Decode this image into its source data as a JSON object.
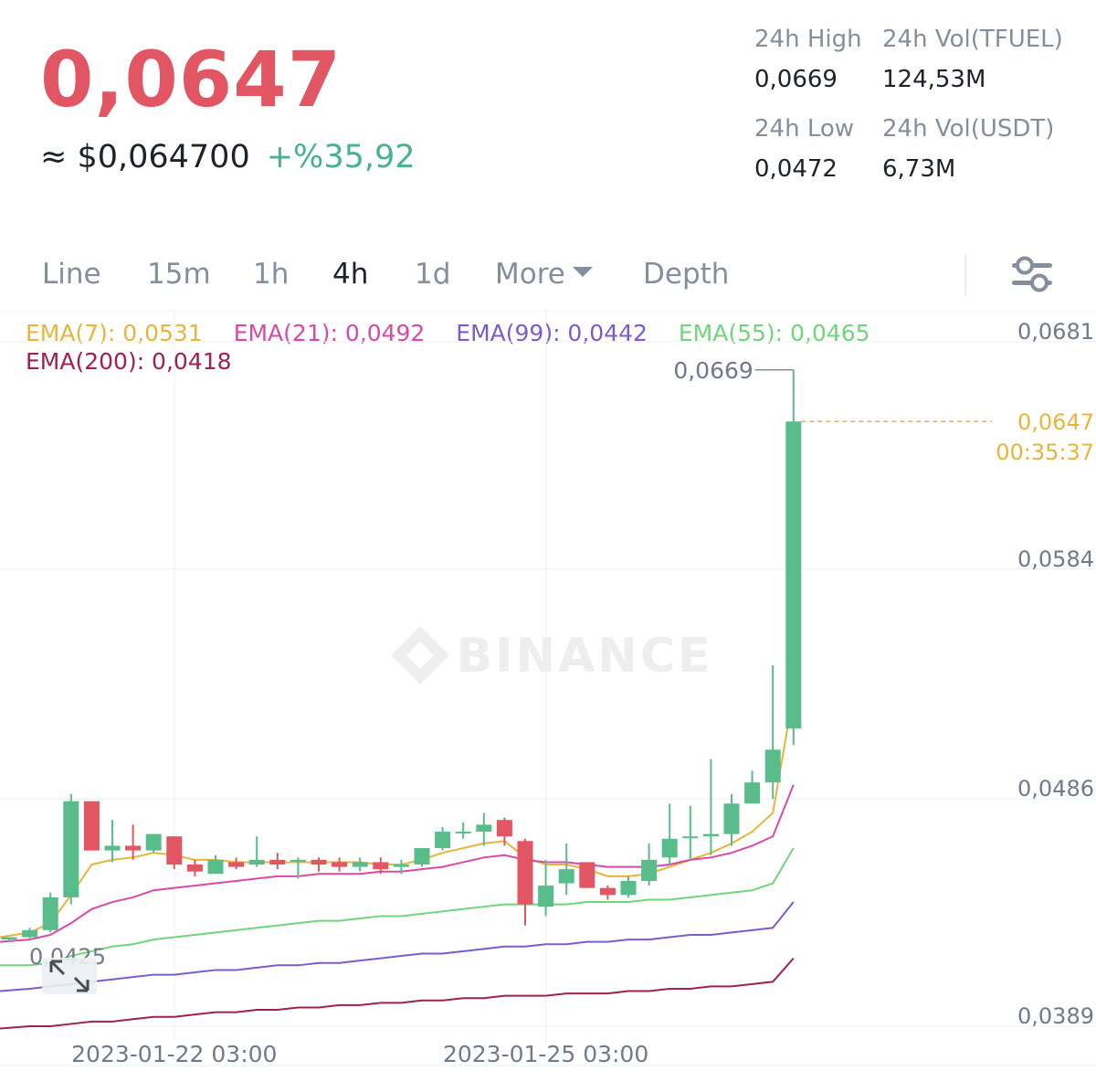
{
  "ticker": {
    "last_price": "0,0647",
    "usd_price": "≈ $0,064700",
    "change_pct": "+%35,92",
    "stats": {
      "high_label": "24h High",
      "high_value": "0,0669",
      "vol_base_label": "24h Vol(TFUEL)",
      "vol_base_value": "124,53M",
      "low_label": "24h Low",
      "low_value": "0,0472",
      "vol_quote_label": "24h Vol(USDT)",
      "vol_quote_value": "6,73M"
    }
  },
  "tabs": {
    "line": "Line",
    "m15": "15m",
    "h1": "1h",
    "h4": "4h",
    "d1": "1d",
    "more": "More",
    "depth": "Depth",
    "active": "4h",
    "settings_icon": "sliders-icon",
    "more_icon": "caret-down-icon"
  },
  "indicators": {
    "ema7": "EMA(7): 0,0531",
    "ema21": "EMA(21): 0,0492",
    "ema99": "EMA(99): 0,0442",
    "ema55": "EMA(55): 0,0465",
    "ema200": "EMA(200): 0,0418"
  },
  "colors": {
    "up": "#58bd8b",
    "down": "#e25563",
    "ema7": "#e8b53c",
    "ema21": "#d94aa6",
    "ema99": "#7c5ccb",
    "ema55": "#6fd67a",
    "ema200": "#a0204f"
  },
  "chart_data": {
    "type": "candlestick",
    "watermark": "BINANCE",
    "y_axis_ticks": [
      "0,0681",
      "0,0584",
      "0,0486",
      "0,0389"
    ],
    "y_tick_values": [
      0.0681,
      0.0584,
      0.0486,
      0.0389
    ],
    "x_axis_ticks": [
      "2023-01-22 03:00",
      "2023-01-25 03:00"
    ],
    "x_tick_candle_index": [
      8,
      26
    ],
    "max_label": "0,0669",
    "min_label": "0,0425",
    "current_price_label": "0,0647",
    "countdown_label": "00:35:37",
    "candles": [
      {
        "o": 0.0426,
        "h": 0.0427,
        "l": 0.0425,
        "c": 0.0427
      },
      {
        "o": 0.0427,
        "h": 0.0431,
        "l": 0.0426,
        "c": 0.043
      },
      {
        "o": 0.043,
        "h": 0.0446,
        "l": 0.0429,
        "c": 0.0444
      },
      {
        "o": 0.0444,
        "h": 0.0488,
        "l": 0.0441,
        "c": 0.0485
      },
      {
        "o": 0.0485,
        "h": 0.0485,
        "l": 0.0464,
        "c": 0.0464
      },
      {
        "o": 0.0464,
        "h": 0.0477,
        "l": 0.0459,
        "c": 0.0466
      },
      {
        "o": 0.0466,
        "h": 0.0475,
        "l": 0.046,
        "c": 0.0464
      },
      {
        "o": 0.0464,
        "h": 0.0471,
        "l": 0.0463,
        "c": 0.0471
      },
      {
        "o": 0.047,
        "h": 0.047,
        "l": 0.0456,
        "c": 0.0458
      },
      {
        "o": 0.0458,
        "h": 0.046,
        "l": 0.0453,
        "c": 0.0455
      },
      {
        "o": 0.0454,
        "h": 0.0462,
        "l": 0.0454,
        "c": 0.046
      },
      {
        "o": 0.0459,
        "h": 0.0461,
        "l": 0.0456,
        "c": 0.0457
      },
      {
        "o": 0.0458,
        "h": 0.047,
        "l": 0.0457,
        "c": 0.046
      },
      {
        "o": 0.046,
        "h": 0.0463,
        "l": 0.0456,
        "c": 0.0458
      },
      {
        "o": 0.046,
        "h": 0.0461,
        "l": 0.0452,
        "c": 0.046
      },
      {
        "o": 0.046,
        "h": 0.0461,
        "l": 0.0455,
        "c": 0.0458
      },
      {
        "o": 0.0459,
        "h": 0.0461,
        "l": 0.0455,
        "c": 0.0457
      },
      {
        "o": 0.0457,
        "h": 0.0461,
        "l": 0.0455,
        "c": 0.0459
      },
      {
        "o": 0.0459,
        "h": 0.0461,
        "l": 0.0454,
        "c": 0.0456
      },
      {
        "o": 0.0457,
        "h": 0.046,
        "l": 0.0454,
        "c": 0.0458
      },
      {
        "o": 0.0458,
        "h": 0.0465,
        "l": 0.0457,
        "c": 0.0465
      },
      {
        "o": 0.0465,
        "h": 0.0474,
        "l": 0.0464,
        "c": 0.0472
      },
      {
        "o": 0.0472,
        "h": 0.0476,
        "l": 0.0469,
        "c": 0.0472
      },
      {
        "o": 0.0472,
        "h": 0.048,
        "l": 0.0466,
        "c": 0.0475
      },
      {
        "o": 0.0477,
        "h": 0.0478,
        "l": 0.0466,
        "c": 0.047
      },
      {
        "o": 0.0468,
        "h": 0.0469,
        "l": 0.0432,
        "c": 0.0441
      },
      {
        "o": 0.044,
        "h": 0.046,
        "l": 0.0436,
        "c": 0.0449
      },
      {
        "o": 0.045,
        "h": 0.0467,
        "l": 0.0445,
        "c": 0.0456
      },
      {
        "o": 0.0459,
        "h": 0.0459,
        "l": 0.0448,
        "c": 0.0448
      },
      {
        "o": 0.0448,
        "h": 0.0449,
        "l": 0.0443,
        "c": 0.0445
      },
      {
        "o": 0.0445,
        "h": 0.0453,
        "l": 0.0444,
        "c": 0.0451
      },
      {
        "o": 0.0451,
        "h": 0.0467,
        "l": 0.0449,
        "c": 0.046
      },
      {
        "o": 0.0461,
        "h": 0.0484,
        "l": 0.0458,
        "c": 0.0469
      },
      {
        "o": 0.047,
        "h": 0.0483,
        "l": 0.046,
        "c": 0.047
      },
      {
        "o": 0.047,
        "h": 0.0503,
        "l": 0.0462,
        "c": 0.0471
      },
      {
        "o": 0.0471,
        "h": 0.0488,
        "l": 0.0466,
        "c": 0.0484
      },
      {
        "o": 0.0484,
        "h": 0.0498,
        "l": 0.0484,
        "c": 0.0493
      },
      {
        "o": 0.0493,
        "h": 0.0543,
        "l": 0.0486,
        "c": 0.0507
      },
      {
        "o": 0.0516,
        "h": 0.0669,
        "l": 0.0509,
        "c": 0.0647
      }
    ],
    "ema": {
      "EMA(7)": [
        0.0427,
        0.0429,
        0.0433,
        0.0445,
        0.0458,
        0.046,
        0.0461,
        0.0463,
        0.0462,
        0.046,
        0.046,
        0.0459,
        0.0459,
        0.0459,
        0.0459,
        0.0459,
        0.0459,
        0.0459,
        0.0458,
        0.0458,
        0.046,
        0.0463,
        0.0465,
        0.0467,
        0.0468,
        0.0461,
        0.0458,
        0.0458,
        0.0456,
        0.0453,
        0.0453,
        0.0454,
        0.0457,
        0.046,
        0.0463,
        0.0467,
        0.0472,
        0.048,
        0.0531
      ],
      "EMA(21)": [
        0.0425,
        0.0426,
        0.0428,
        0.0433,
        0.0439,
        0.0442,
        0.0444,
        0.0447,
        0.0448,
        0.0449,
        0.045,
        0.0451,
        0.0452,
        0.0453,
        0.0453,
        0.0454,
        0.0454,
        0.0454,
        0.0455,
        0.0455,
        0.0456,
        0.0457,
        0.0459,
        0.0461,
        0.0462,
        0.046,
        0.0459,
        0.0459,
        0.0458,
        0.0457,
        0.0457,
        0.0457,
        0.0458,
        0.046,
        0.0461,
        0.0463,
        0.0466,
        0.047,
        0.0492
      ],
      "EMA(55)": [
        0.0415,
        0.0415,
        0.0416,
        0.0419,
        0.0421,
        0.0423,
        0.0424,
        0.0426,
        0.0427,
        0.0428,
        0.0429,
        0.043,
        0.0431,
        0.0432,
        0.0433,
        0.0434,
        0.0434,
        0.0435,
        0.0436,
        0.0436,
        0.0437,
        0.0438,
        0.0439,
        0.044,
        0.0441,
        0.0441,
        0.0441,
        0.0441,
        0.0442,
        0.0442,
        0.0442,
        0.0443,
        0.0443,
        0.0444,
        0.0445,
        0.0446,
        0.0447,
        0.045,
        0.0465
      ],
      "EMA(99)": [
        0.0404,
        0.0405,
        0.0406,
        0.0407,
        0.0408,
        0.0409,
        0.041,
        0.0411,
        0.0411,
        0.0412,
        0.0413,
        0.0413,
        0.0414,
        0.0415,
        0.0415,
        0.0416,
        0.0416,
        0.0417,
        0.0418,
        0.0419,
        0.042,
        0.042,
        0.0421,
        0.0422,
        0.0423,
        0.0423,
        0.0424,
        0.0424,
        0.0425,
        0.0425,
        0.0426,
        0.0426,
        0.0427,
        0.0428,
        0.0428,
        0.0429,
        0.043,
        0.0431,
        0.0442
      ],
      "EMA(200)": [
        0.0388,
        0.0389,
        0.0389,
        0.039,
        0.0391,
        0.0391,
        0.0392,
        0.0393,
        0.0393,
        0.0394,
        0.0395,
        0.0395,
        0.0396,
        0.0396,
        0.0397,
        0.0397,
        0.0398,
        0.0398,
        0.0399,
        0.0399,
        0.04,
        0.04,
        0.0401,
        0.0401,
        0.0402,
        0.0402,
        0.0402,
        0.0403,
        0.0403,
        0.0403,
        0.0404,
        0.0404,
        0.0405,
        0.0405,
        0.0406,
        0.0406,
        0.0407,
        0.0408,
        0.0418
      ]
    }
  }
}
